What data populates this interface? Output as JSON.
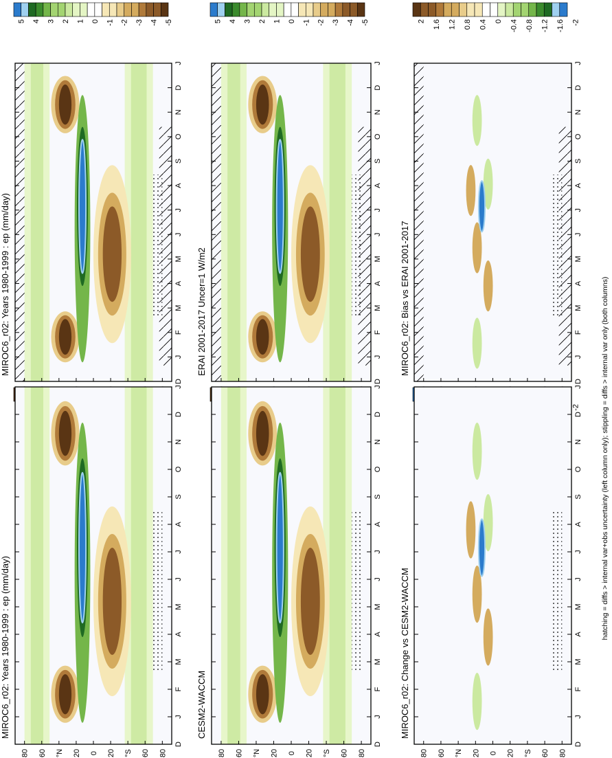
{
  "footer_note": "hatching = diffs > internal var+obs uncertainty (left column only); stippling = diffs > internal var only (both columns)",
  "colors": {
    "brown_dark": "#5a3514",
    "brown": "#8c5a28",
    "brown_mid": "#b07a3a",
    "tan": "#d4ab5e",
    "tan_light": "#e8cc8a",
    "cream": "#f6e7b6",
    "white": "#ffffff",
    "green_pale": "#e4f5c4",
    "green_light": "#cbe9a0",
    "green": "#a3d471",
    "green_mid": "#74b64a",
    "green_dark": "#3b8b2d",
    "green_deep": "#1f6a23",
    "blue_light": "#9fd0ef",
    "blue": "#2b7bcc"
  },
  "chart_data": [
    {
      "type": "heatmap",
      "id": "left-top",
      "orientation": "rotated-90",
      "title": "MIROC6_r02: Years 1980-1999 : ep (mm/day)",
      "months": [
        "J",
        "F",
        "M",
        "A",
        "M",
        "J",
        "J",
        "A",
        "S",
        "O",
        "N",
        "D",
        "J"
      ],
      "start_label": "D",
      "lat_ticks": [
        "80",
        "60",
        "°N",
        "20",
        "0",
        "20",
        "°S",
        "60",
        "80"
      ],
      "colorbar": [
        "5",
        "4",
        "3",
        "2",
        "1",
        "0",
        "-1",
        "-2",
        "-3",
        "-4",
        "-5"
      ],
      "hatching": true,
      "stippling": true
    },
    {
      "type": "heatmap",
      "id": "right-top",
      "orientation": "rotated-90",
      "title": "MIROC6_r02: Years 1980-1999 : ep (mm/day)",
      "months": [
        "J",
        "F",
        "M",
        "A",
        "M",
        "J",
        "J",
        "A",
        "S",
        "O",
        "N",
        "D",
        "J"
      ],
      "start_label": "D",
      "lat_ticks": [
        "80",
        "60",
        "°N",
        "20",
        "0",
        "20",
        "°S",
        "60",
        "80"
      ],
      "colorbar": [
        "5",
        "4",
        "3",
        "2",
        "1",
        "0",
        "-1",
        "-2",
        "-3",
        "-4",
        "-5"
      ],
      "hatching": false,
      "stippling": true
    },
    {
      "type": "heatmap",
      "id": "left-mid",
      "orientation": "rotated-90",
      "title": "ERAI 2001-2017 Uncer=1 W/m2",
      "months": [
        "J",
        "F",
        "M",
        "A",
        "M",
        "J",
        "J",
        "A",
        "S",
        "O",
        "N",
        "D",
        "J"
      ],
      "start_label": "D",
      "lat_ticks": [
        "80",
        "60",
        "°N",
        "20",
        "0",
        "20",
        "°S",
        "60",
        "80"
      ],
      "colorbar": [
        "5",
        "4",
        "3",
        "2",
        "1",
        "0",
        "-1",
        "-2",
        "-3",
        "-4",
        "-5"
      ],
      "hatching": true,
      "stippling": true
    },
    {
      "type": "heatmap",
      "id": "right-mid",
      "orientation": "rotated-90",
      "title": "CESM2-WACCM",
      "months": [
        "J",
        "F",
        "M",
        "A",
        "M",
        "J",
        "J",
        "A",
        "S",
        "O",
        "N",
        "D",
        "J"
      ],
      "start_label": "D",
      "lat_ticks": [
        "80",
        "60",
        "°N",
        "20",
        "0",
        "20",
        "°S",
        "60",
        "80"
      ],
      "colorbar": [
        "5",
        "4",
        "3",
        "2",
        "1",
        "0",
        "-1",
        "-2",
        "-3",
        "-4",
        "-5"
      ],
      "hatching": false,
      "stippling": true
    },
    {
      "type": "heatmap",
      "id": "left-bot",
      "orientation": "rotated-90",
      "title": "MIROC6_r02: Bias vs ERAI 2001-2017",
      "months": [
        "J",
        "F",
        "M",
        "A",
        "M",
        "J",
        "J",
        "A",
        "S",
        "O",
        "N",
        "D",
        "J"
      ],
      "start_label": "D",
      "lat_ticks": [
        "80",
        "60",
        "°N",
        "20",
        "0",
        "20",
        "°S",
        "60",
        "80"
      ],
      "colorbar": [
        "2",
        "1.6",
        "1.2",
        "0.8",
        "0.4",
        "0",
        "-0.4",
        "-0.8",
        "-1.2",
        "-1.6",
        "-2"
      ],
      "hatching": true,
      "stippling": true
    },
    {
      "type": "heatmap",
      "id": "right-bot",
      "orientation": "rotated-90",
      "title": "MIROC6_r02: Change vs CESM2-WACCM",
      "months": [
        "J",
        "F",
        "M",
        "A",
        "M",
        "J",
        "J",
        "A",
        "S",
        "O",
        "N",
        "D",
        "J"
      ],
      "start_label": "D",
      "lat_ticks": [
        "80",
        "60",
        "°N",
        "20",
        "0",
        "20",
        "°S",
        "60",
        "80"
      ],
      "colorbar": [
        "2",
        "1.6",
        "1.2",
        "0.8",
        "0.4",
        "0",
        "-0.4",
        "-0.8",
        "-1.2",
        "-1.6",
        "-2"
      ],
      "hatching": false,
      "stippling": true
    }
  ]
}
